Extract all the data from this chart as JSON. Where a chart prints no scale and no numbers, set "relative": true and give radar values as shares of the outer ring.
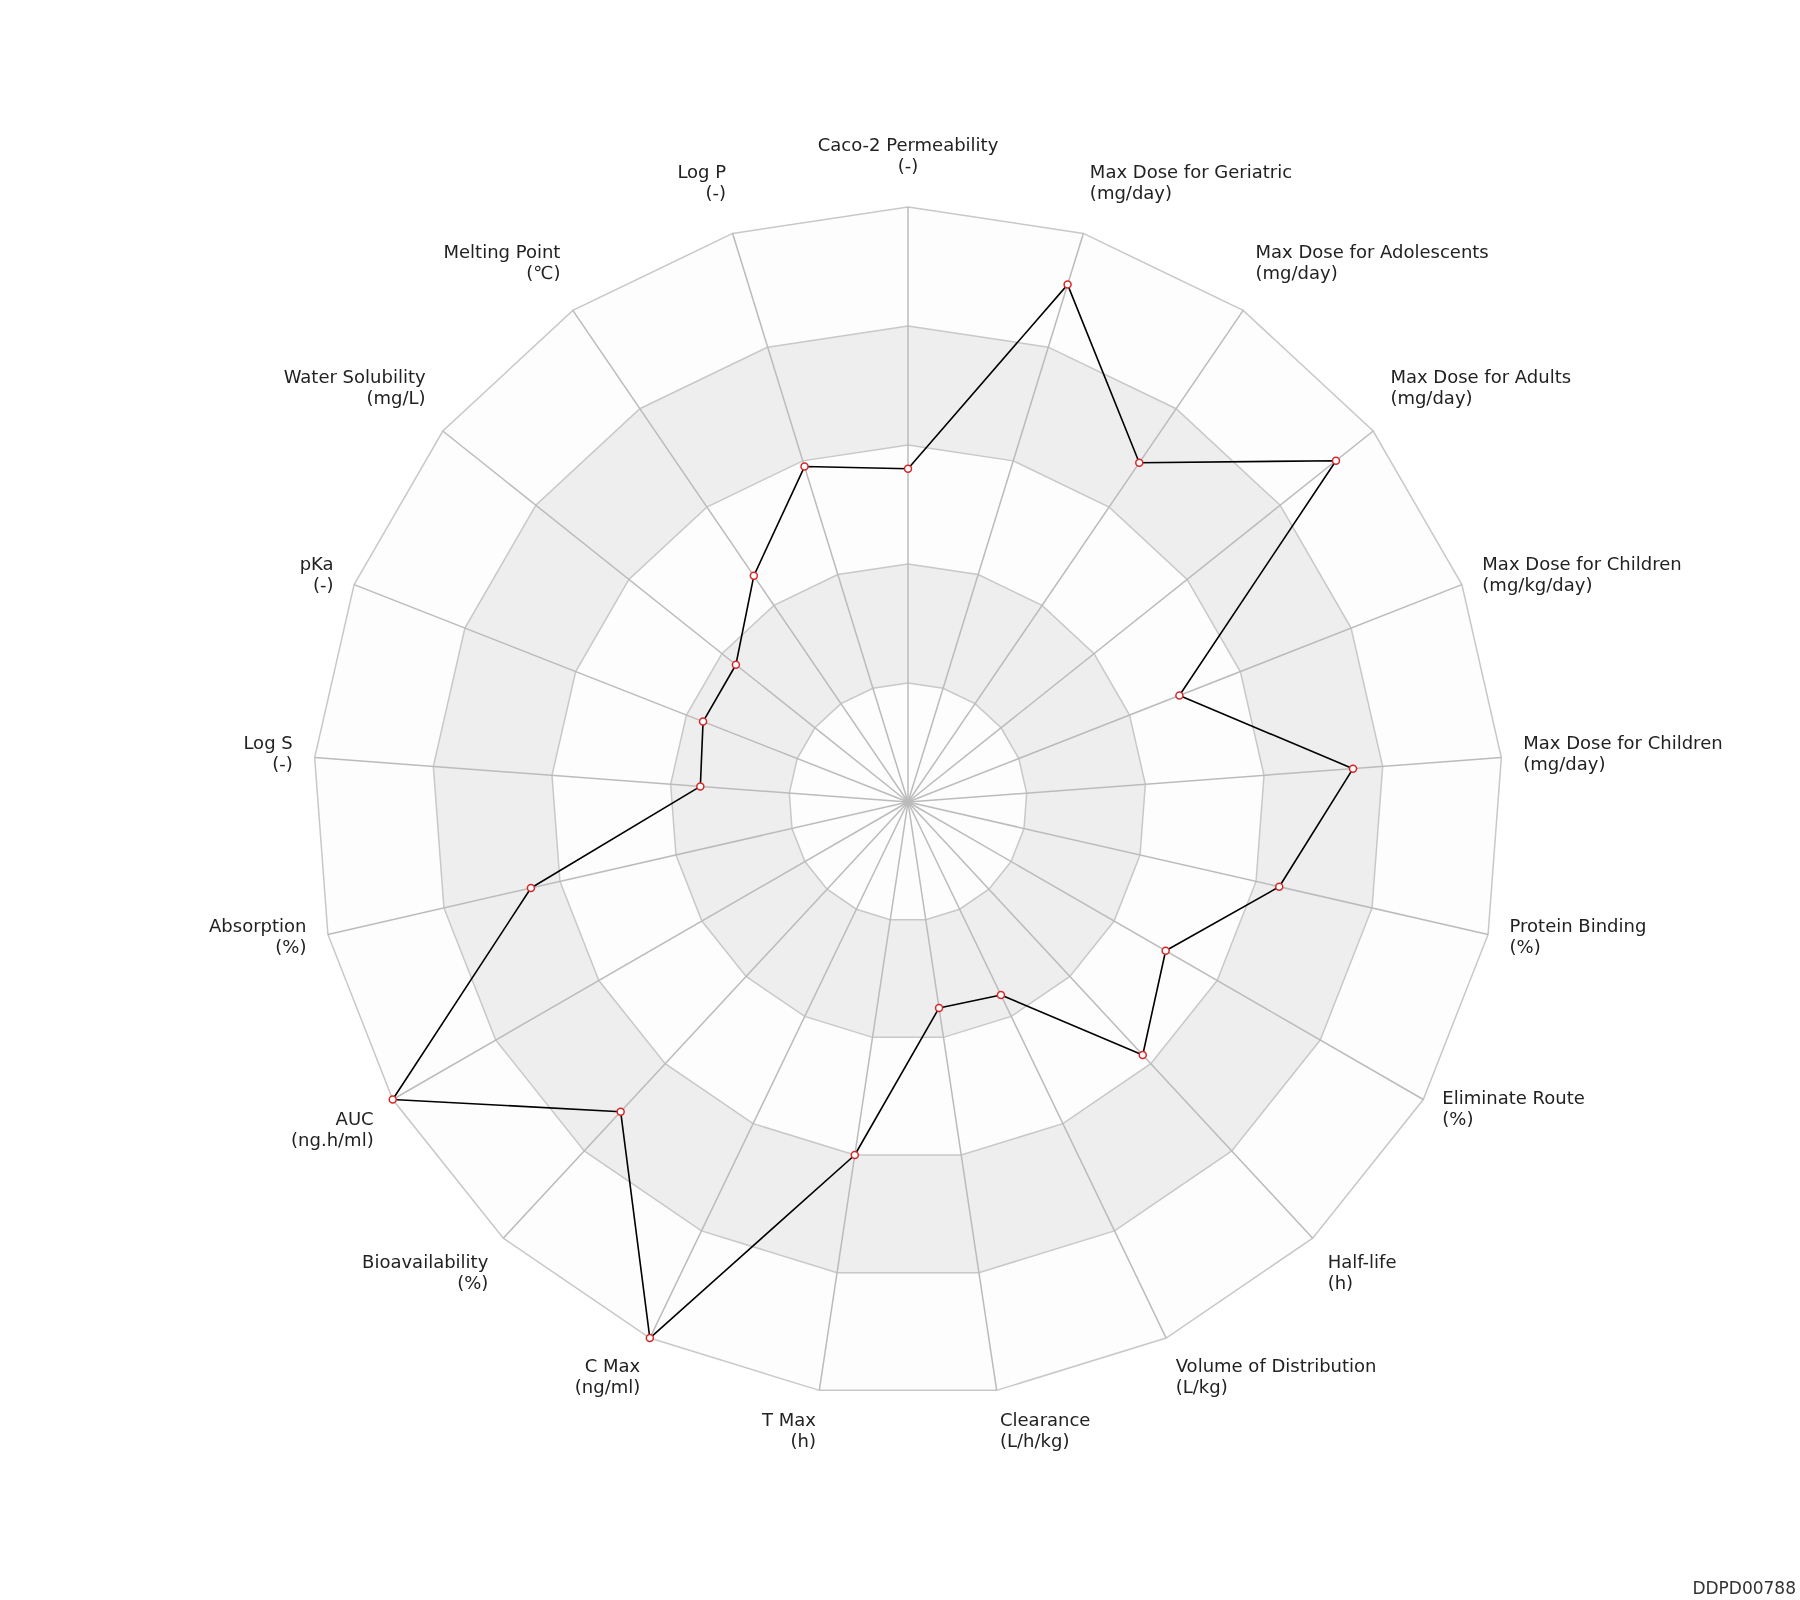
{
  "chart_data": {
    "type": "radar",
    "relative": true,
    "marker": "circle",
    "grid": true,
    "categories": [
      "Caco-2 Permeability\n(-)",
      "Max Dose for Geriatric\n(mg/day)",
      "Max Dose for Adolescents\n(mg/day)",
      "Max Dose for Adults\n(mg/day)",
      "Max Dose for Children\n(mg/kg/day)",
      "Max Dose for Children\n(mg/day)",
      "Protein Binding\n(%)",
      "Eliminate Route\n(%)",
      "Half-life\n(h)",
      "Volume of Distribution\n(L/kg)",
      "Clearance\n(L/h/kg)",
      "T Max\n(h)",
      "C Max\n(ng/ml)",
      "Bioavailability\n(%)",
      "AUC\n(ng.h/ml)",
      "Absorption\n(%)",
      "Log S\n(-)",
      "pKa\n(-)",
      "Water Solubility\n(mg/L)",
      "Melting Point\n(℃)",
      "Log P\n(-)"
    ],
    "series": [
      {
        "color": "#000000",
        "values": [
          0.56,
          0.91,
          0.69,
          0.92,
          0.49,
          0.75,
          0.64,
          0.5,
          0.58,
          0.36,
          0.35,
          0.6,
          1,
          0.71,
          1,
          0.65,
          0.35,
          0.37,
          0.37,
          0.46,
          0.59
        ]
      }
    ],
    "annotations": [
      "DDPD00788"
    ]
  }
}
